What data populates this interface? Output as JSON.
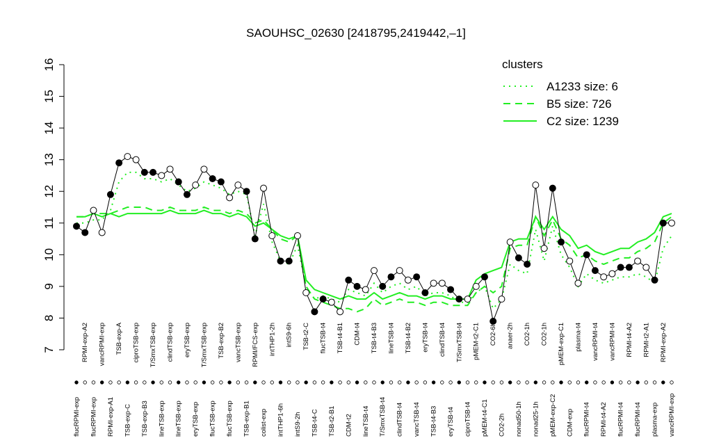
{
  "chart_data": {
    "type": "line",
    "title": "SAOUHSC_02630 [2418795,2419442,–1]",
    "legend_title": "clusters",
    "legend_color": "#22ee22",
    "ylim": [
      7,
      16
    ],
    "yticks": [
      7,
      8,
      9,
      10,
      11,
      12,
      13,
      14,
      15,
      16
    ],
    "categories": [
      "flucRPMI-exp",
      "RPMI-exp-A2",
      "flucRPMI-exp",
      "vancRPMI-exp",
      "RPMI-exp-A1",
      "TSB-exp-A",
      "TSB-exp-C",
      "ciproTSB-exp",
      "TSB-exp-B3",
      "T/SmxTSB-exp",
      "lineTSB-exp",
      "clindTSB-exp",
      "lineTSB-exp",
      "eryTSB-exp",
      "eryTSB-exp",
      "T/SmxTSB-exp",
      "flucTSB-exp",
      "TSB-exp-B2",
      "flucTSB-exp",
      "vancTSB-exp",
      "TSB-exp-B1",
      "RPMI/FCS-exp",
      "colist-exp",
      "intTHP1-2h",
      "intTHP1-6h",
      "intS9-6h",
      "intS9-2h",
      "TSB-t2-C",
      "TSB-t4-C",
      "flucTSB-t4",
      "TSB-t2-B1",
      "TSB-t4-B1",
      "CDM-t2",
      "CDM-t4",
      "lineTSB-t4",
      "TSB-t4-B3",
      "T/SmxTSB-t4",
      "lineTSB-t4",
      "clindTSB-t4",
      "TSB-t4-B2",
      "vancTSB-t4",
      "eryTSB-t4",
      "TSB-t4-B3",
      "clindTSB-t4",
      "eryTSB-t4",
      "T/SmxTSB-t4",
      "ciproTSB-t4",
      "pMEM-t2-C1",
      "pMEM-t4-C1",
      "CO2-6h",
      "CO2-2h",
      "anaer-2h",
      "nonad50-1h",
      "CO2-1h",
      "nonad25-1h",
      "CO2-1h",
      "pMEM-exp-C2",
      "pMEM-exp-C1",
      "CDM-exp",
      "plasma-t4",
      "flucRPMI-t4",
      "vancRPMI-t4",
      "RPMI-t4-A2",
      "vancRPMI-t4",
      "flucRPMI-t4",
      "RPMI-t4-A2",
      "flucRPMI-t4",
      "RPMI-t2-A1",
      "plasma-exp",
      "RPMI-exp-A2",
      "vancRPMI-exp"
    ],
    "values": [
      10.9,
      10.7,
      11.4,
      10.7,
      11.9,
      12.9,
      13.1,
      13.0,
      12.6,
      12.6,
      12.5,
      12.7,
      12.3,
      11.9,
      12.2,
      12.7,
      12.4,
      12.3,
      11.8,
      12.2,
      12.0,
      10.5,
      12.1,
      10.6,
      9.8,
      9.8,
      10.6,
      8.8,
      8.2,
      8.6,
      8.5,
      8.2,
      9.2,
      9.0,
      8.9,
      9.5,
      9.0,
      9.3,
      9.5,
      9.2,
      9.3,
      8.8,
      9.1,
      9.1,
      8.9,
      8.6,
      8.6,
      9.0,
      9.3,
      7.9,
      8.6,
      10.4,
      9.9,
      9.7,
      12.2,
      10.2,
      12.1,
      10.4,
      9.8,
      9.1,
      10.0,
      9.5,
      9.3,
      9.4,
      9.6,
      9.6,
      9.8,
      9.6,
      9.2,
      11.0,
      11.0
    ],
    "series": [
      {
        "name": "A1233 size: 6",
        "color": "#22ee22",
        "dash": "dotted",
        "values": [
          11.0,
          11.0,
          11.1,
          11.1,
          11.4,
          12.3,
          12.6,
          12.6,
          12.4,
          12.4,
          12.3,
          12.4,
          12.2,
          12.0,
          12.1,
          12.3,
          12.2,
          12.1,
          11.9,
          12.0,
          11.9,
          10.6,
          11.6,
          10.4,
          9.8,
          9.7,
          10.3,
          9.0,
          8.6,
          8.7,
          8.6,
          8.5,
          8.9,
          8.8,
          8.7,
          9.1,
          8.8,
          9.0,
          9.1,
          8.9,
          9.0,
          8.7,
          8.8,
          8.8,
          8.7,
          8.5,
          8.5,
          8.8,
          9.0,
          8.3,
          8.6,
          9.7,
          9.5,
          9.4,
          10.8,
          9.8,
          10.9,
          10.0,
          9.6,
          9.0,
          9.4,
          9.2,
          9.1,
          9.2,
          9.3,
          9.3,
          9.4,
          9.3,
          9.1,
          10.2,
          10.6
        ]
      },
      {
        "name": "B5 size: 726",
        "color": "#22ee22",
        "dash": "dashed",
        "values": [
          11.2,
          11.2,
          11.3,
          11.3,
          11.3,
          11.4,
          11.5,
          11.5,
          11.5,
          11.4,
          11.4,
          11.5,
          11.4,
          11.4,
          11.4,
          11.5,
          11.4,
          11.4,
          11.3,
          11.4,
          11.3,
          11.0,
          11.1,
          10.8,
          10.5,
          10.4,
          10.6,
          9.0,
          8.6,
          8.5,
          8.4,
          8.3,
          8.3,
          8.2,
          8.3,
          8.6,
          8.4,
          8.5,
          8.6,
          8.5,
          8.5,
          8.4,
          8.5,
          8.5,
          8.4,
          8.4,
          8.4,
          8.8,
          9.0,
          8.8,
          9.0,
          10.2,
          10.3,
          10.3,
          11.2,
          10.6,
          11.1,
          10.5,
          10.3,
          9.9,
          10.0,
          9.8,
          9.7,
          9.8,
          9.9,
          9.9,
          10.1,
          10.2,
          10.4,
          11.0,
          11.2
        ]
      },
      {
        "name": "C2 size: 1239",
        "color": "#22ee22",
        "dash": "solid",
        "values": [
          11.2,
          11.2,
          11.3,
          11.2,
          11.3,
          11.2,
          11.3,
          11.3,
          11.3,
          11.3,
          11.3,
          11.4,
          11.3,
          11.3,
          11.3,
          11.4,
          11.3,
          11.3,
          11.2,
          11.3,
          11.2,
          10.9,
          11.0,
          10.8,
          10.6,
          10.5,
          10.6,
          9.2,
          8.9,
          8.8,
          8.7,
          8.6,
          8.7,
          8.6,
          8.6,
          8.8,
          8.6,
          8.7,
          8.8,
          8.7,
          8.7,
          8.6,
          8.7,
          8.7,
          8.6,
          8.6,
          8.6,
          9.2,
          9.4,
          9.5,
          9.6,
          10.4,
          10.5,
          10.5,
          11.2,
          10.8,
          11.2,
          10.8,
          10.6,
          10.2,
          10.3,
          10.1,
          10.0,
          10.1,
          10.2,
          10.2,
          10.4,
          10.5,
          10.7,
          11.2,
          11.3
        ]
      }
    ]
  }
}
